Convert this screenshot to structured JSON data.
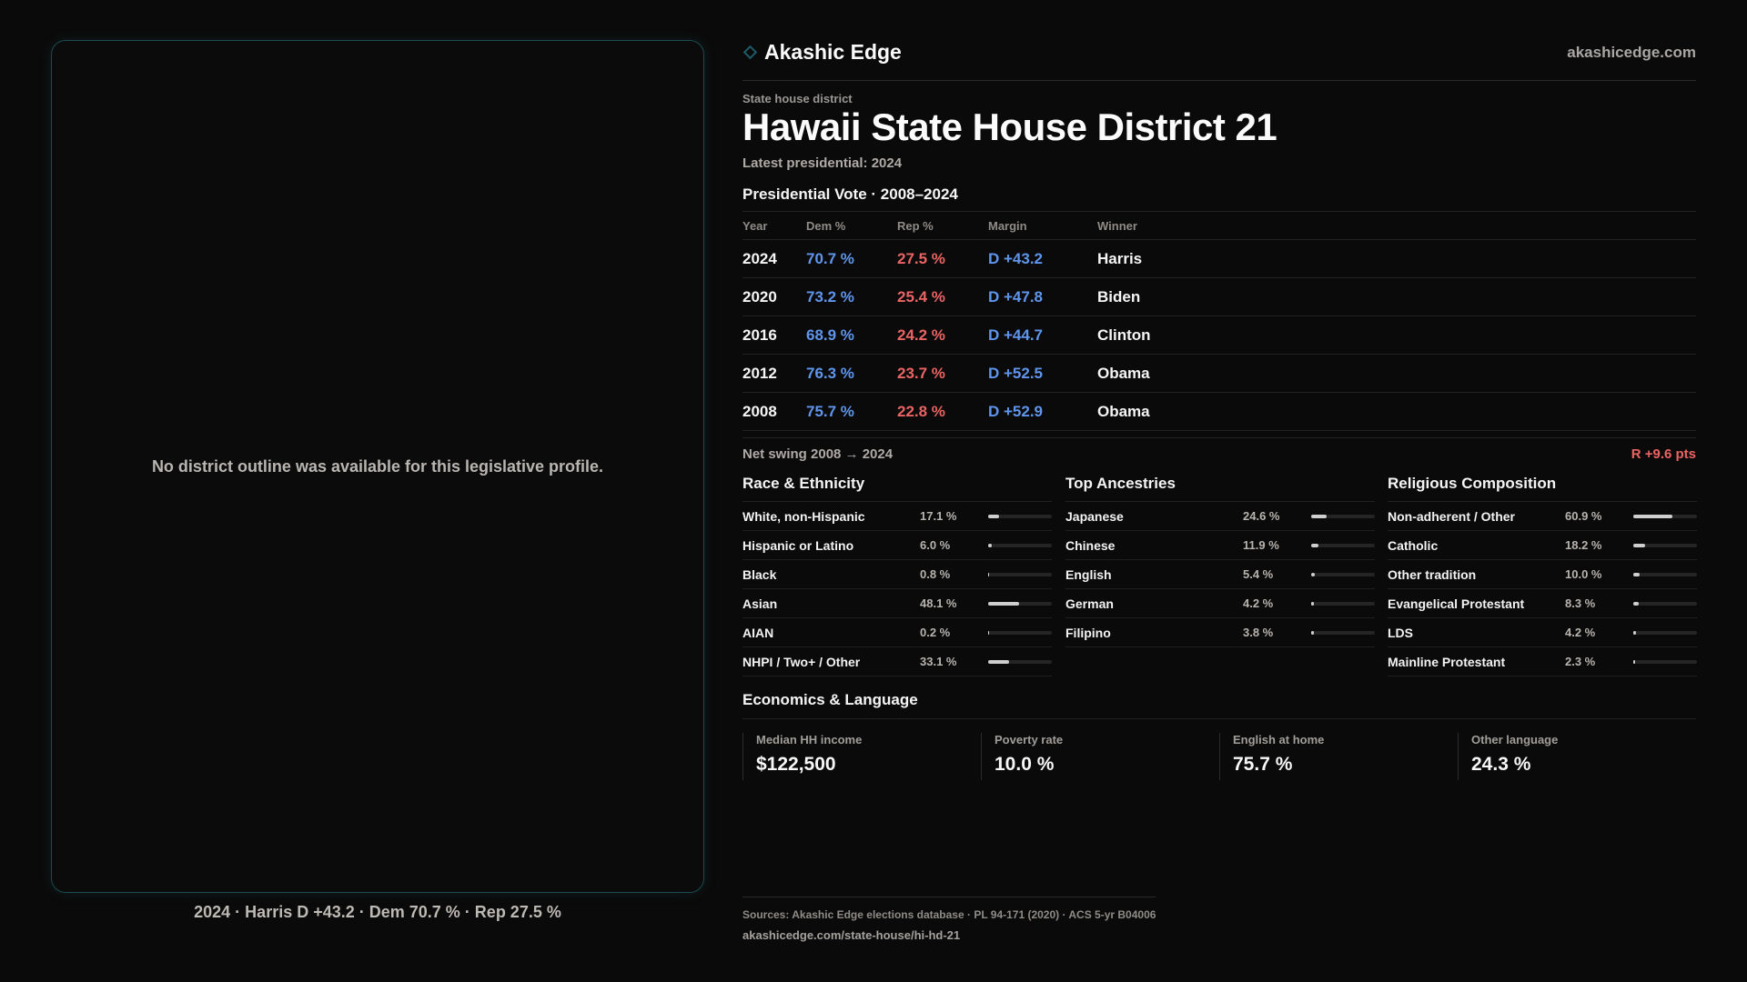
{
  "map": {
    "empty_message": "No district outline was available for this legislative profile.",
    "caption": "2024 · Harris D +43.2 · Dem 70.7 % · Rep 27.5 %"
  },
  "brand": {
    "name": "Akashic Edge",
    "site": "akashicedge.com",
    "icon": "diamond-icon"
  },
  "header": {
    "eyebrow": "State house district",
    "title": "Hawaii State House District 21",
    "subtitle": "Latest presidential: 2024"
  },
  "vote": {
    "title": "Presidential Vote · 2008–2024",
    "columns": {
      "year": "Year",
      "dem": "Dem %",
      "rep": "Rep %",
      "margin": "Margin",
      "winner": "Winner"
    },
    "rows": [
      {
        "year": "2024",
        "dem": "70.7 %",
        "rep": "27.5 %",
        "margin": "D +43.2",
        "winner": "Harris"
      },
      {
        "year": "2020",
        "dem": "73.2 %",
        "rep": "25.4 %",
        "margin": "D +47.8",
        "winner": "Biden"
      },
      {
        "year": "2016",
        "dem": "68.9 %",
        "rep": "24.2 %",
        "margin": "D +44.7",
        "winner": "Clinton"
      },
      {
        "year": "2012",
        "dem": "76.3 %",
        "rep": "23.7 %",
        "margin": "D +52.5",
        "winner": "Obama"
      },
      {
        "year": "2008",
        "dem": "75.7 %",
        "rep": "22.8 %",
        "margin": "D +52.9",
        "winner": "Obama"
      }
    ],
    "colors": {
      "dem": "#5f95ec",
      "rep": "#ea6464"
    }
  },
  "swing": {
    "label": "Net swing 2008 → 2024",
    "value": "R +9.6 pts"
  },
  "race": {
    "title": "Race & Ethnicity",
    "items": [
      {
        "label": "White, non-Hispanic",
        "value": "17.1 %",
        "pct": 17.1
      },
      {
        "label": "Hispanic or Latino",
        "value": "6.0 %",
        "pct": 6.0
      },
      {
        "label": "Black",
        "value": "0.8 %",
        "pct": 0.8
      },
      {
        "label": "Asian",
        "value": "48.1 %",
        "pct": 48.1
      },
      {
        "label": "AIAN",
        "value": "0.2 %",
        "pct": 0.2
      },
      {
        "label": "NHPI / Two+ / Other",
        "value": "33.1 %",
        "pct": 33.1
      }
    ]
  },
  "ancestry": {
    "title": "Top Ancestries",
    "items": [
      {
        "label": "Japanese",
        "value": "24.6 %",
        "pct": 24.6
      },
      {
        "label": "Chinese",
        "value": "11.9 %",
        "pct": 11.9
      },
      {
        "label": "English",
        "value": "5.4 %",
        "pct": 5.4
      },
      {
        "label": "German",
        "value": "4.2 %",
        "pct": 4.2
      },
      {
        "label": "Filipino",
        "value": "3.8 %",
        "pct": 3.8
      }
    ]
  },
  "religion": {
    "title": "Religious Composition",
    "items": [
      {
        "label": "Non-adherent / Other",
        "value": "60.9 %",
        "pct": 60.9
      },
      {
        "label": "Catholic",
        "value": "18.2 %",
        "pct": 18.2
      },
      {
        "label": "Other tradition",
        "value": "10.0 %",
        "pct": 10.0
      },
      {
        "label": "Evangelical Protestant",
        "value": "8.3 %",
        "pct": 8.3
      },
      {
        "label": "LDS",
        "value": "4.2 %",
        "pct": 4.2
      },
      {
        "label": "Mainline Protestant",
        "value": "2.3 %",
        "pct": 2.3
      }
    ]
  },
  "economics": {
    "title": "Economics & Language",
    "items": [
      {
        "label": "Median HH income",
        "value": "$122,500"
      },
      {
        "label": "Poverty rate",
        "value": "10.0 %"
      },
      {
        "label": "English at home",
        "value": "75.7 %"
      },
      {
        "label": "Other language",
        "value": "24.3 %"
      }
    ]
  },
  "footer": {
    "sources": "Sources: Akashic Edge elections database · PL 94-171 (2020) · ACS 5-yr B04006",
    "url": "akashicedge.com/state-house/hi-hd-21"
  }
}
